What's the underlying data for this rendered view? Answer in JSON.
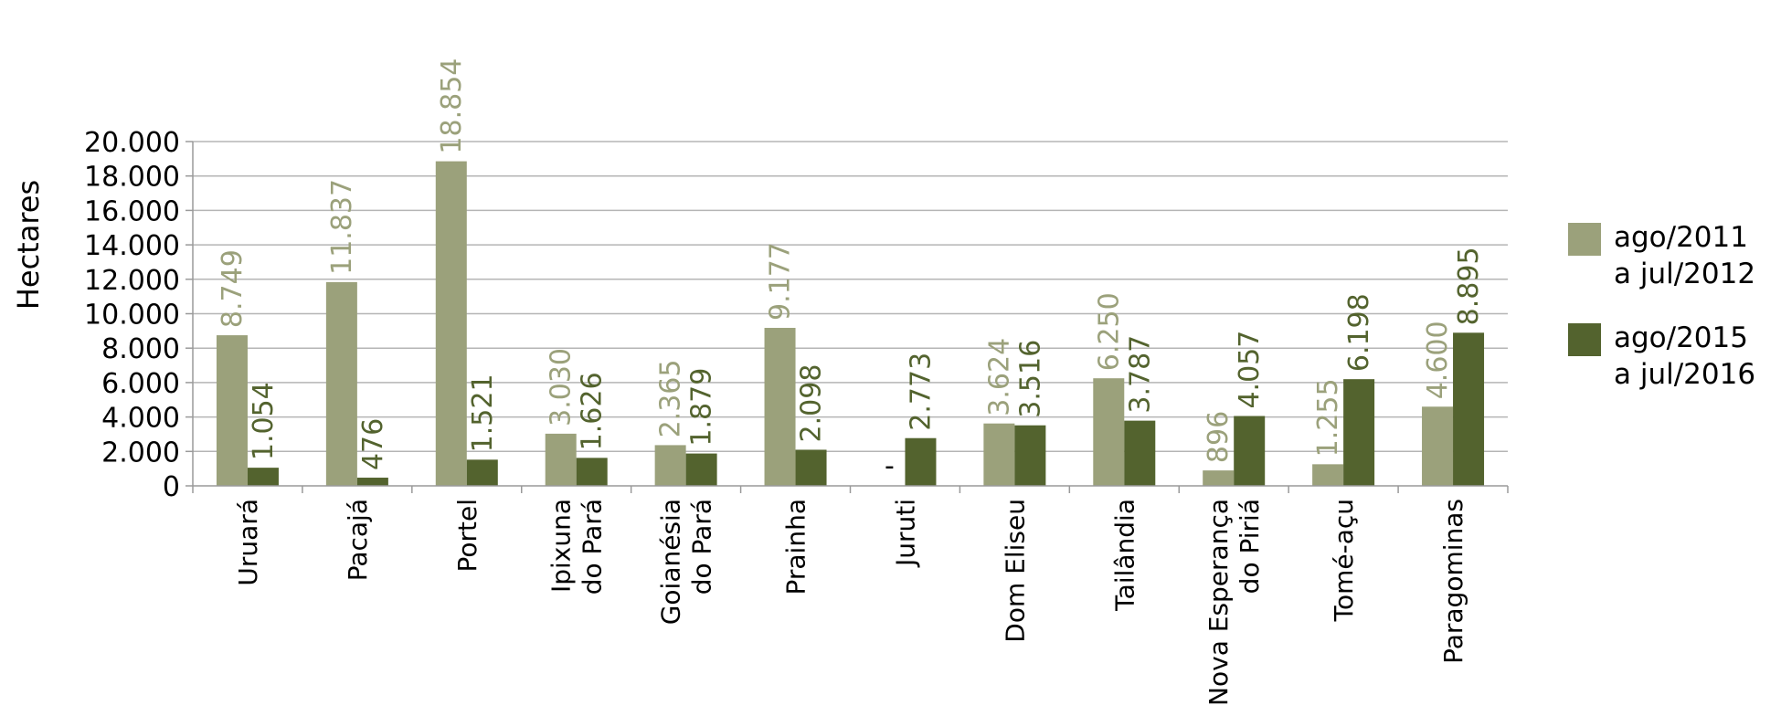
{
  "chart_data": {
    "type": "bar",
    "ylabel": "Hectares",
    "xlabel": "",
    "ylim": [
      0,
      20000
    ],
    "yticks": [
      0,
      2000,
      4000,
      6000,
      8000,
      10000,
      12000,
      14000,
      16000,
      18000,
      20000
    ],
    "ytick_labels": [
      "0",
      "2.000",
      "4.000",
      "6.000",
      "8.000",
      "10.000",
      "12.000",
      "14.000",
      "16.000",
      "18.000",
      "20.000"
    ],
    "grid": true,
    "legend_position": "right",
    "categories": [
      [
        "Uruará"
      ],
      [
        "Pacajá"
      ],
      [
        "Portel"
      ],
      [
        "Ipixuna",
        "do Pará"
      ],
      [
        "Goianésia",
        "do Pará"
      ],
      [
        "Prainha"
      ],
      [
        "Juruti"
      ],
      [
        "Dom Eliseu"
      ],
      [
        "Tailândia"
      ],
      [
        "Nova Esperança",
        "do Piriá"
      ],
      [
        "Tomé-açu"
      ],
      [
        "Paragominas"
      ]
    ],
    "series": [
      {
        "name": [
          "ago/2011",
          "a jul/2012"
        ],
        "color": "#9ba17b",
        "values": [
          8749,
          11837,
          18854,
          3030,
          2365,
          9177,
          0,
          3624,
          6250,
          896,
          1255,
          4600
        ],
        "labels": [
          "8.749",
          "11.837",
          "18.854",
          "3.030",
          "2.365",
          "9.177",
          "-",
          "3.624",
          "6.250",
          "896",
          "1.255",
          "4.600"
        ]
      },
      {
        "name": [
          "ago/2015",
          "a jul/2016"
        ],
        "color": "#53632e",
        "values": [
          1054,
          476,
          1521,
          1626,
          1879,
          2098,
          2773,
          3516,
          3787,
          4057,
          6198,
          8895
        ],
        "labels": [
          "1.054",
          "476",
          "1.521",
          "1.626",
          "1.879",
          "2.098",
          "2.773",
          "3.516",
          "3.787",
          "4.057",
          "6.198",
          "8.895"
        ]
      }
    ]
  }
}
